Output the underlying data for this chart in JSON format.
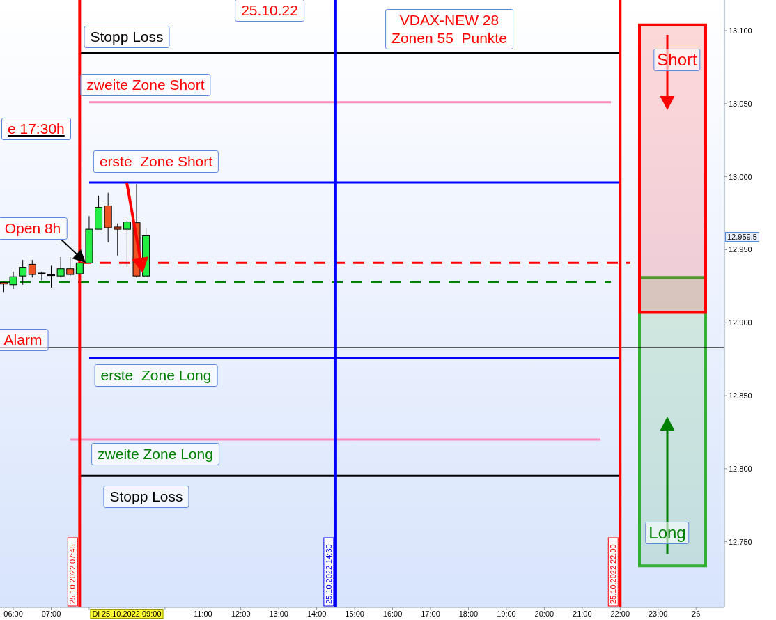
{
  "chart_data": {
    "type": "candlestick",
    "x": [
      "2022-10-25T05:45",
      "2022-10-25T06:00",
      "2022-10-25T06:15",
      "2022-10-25T06:30",
      "2022-10-25T06:45",
      "2022-10-25T07:00",
      "2022-10-25T07:15",
      "2022-10-25T07:30",
      "2022-10-25T07:45",
      "2022-10-25T08:00",
      "2022-10-25T08:15",
      "2022-10-25T08:30",
      "2022-10-25T08:45",
      "2022-10-25T09:00",
      "2022-10-25T09:15",
      "2022-10-25T09:30"
    ],
    "ohlc": [
      [
        12927.5,
        12928,
        12921,
        12926.5
      ],
      [
        12926,
        12935,
        12923,
        12931.5
      ],
      [
        12932,
        12943,
        12926,
        12938
      ],
      [
        12940,
        12943,
        12931,
        12933
      ],
      [
        12934,
        12935,
        12929,
        12934
      ],
      [
        12933,
        12939,
        12924,
        12933
      ],
      [
        12932,
        12945,
        12931,
        12937
      ],
      [
        12937,
        12945,
        12932,
        12933
      ],
      [
        12933.5,
        12941,
        12933,
        12941
      ],
      [
        12941,
        12973,
        12941,
        12964
      ],
      [
        12964,
        12987,
        12964,
        12979
      ],
      [
        12980,
        12989,
        12955,
        12965
      ],
      [
        12965.5,
        12968,
        12946,
        12964
      ],
      [
        12964,
        12970,
        12938,
        12969
      ],
      [
        12968.5,
        12995,
        12931,
        12932
      ],
      [
        12932,
        12964.5,
        12931,
        12959.5
      ]
    ],
    "colors": [
      "#ee5522",
      "#22ee44",
      "#22ee44",
      "#ee5522",
      "#000000",
      "#000000",
      "#22ee44",
      "#ee5522",
      "#22ee44",
      "#22ee44",
      "#22ee44",
      "#ee5522",
      "#ee5522",
      "#22ee44",
      "#ee5522",
      "#22ee44"
    ],
    "xlim": [
      "2022-10-25T05:39",
      "2022-10-26T00:45"
    ],
    "xticks": [
      {
        "value": "2022-10-25T06:00",
        "label": "06:00"
      },
      {
        "value": "2022-10-25T07:00",
        "label": "07:00"
      },
      {
        "value": "2022-10-25T08:00",
        "label": null
      },
      {
        "value": "2022-10-25T09:00",
        "label": null
      },
      {
        "value": "2022-10-25T10:00",
        "label": null
      },
      {
        "value": "2022-10-25T11:00",
        "label": "11:00"
      },
      {
        "value": "2022-10-25T12:00",
        "label": "12:00"
      },
      {
        "value": "2022-10-25T13:00",
        "label": "13:00"
      },
      {
        "value": "2022-10-25T14:00",
        "label": "14:00"
      },
      {
        "value": "2022-10-25T15:00",
        "label": "15:00"
      },
      {
        "value": "2022-10-25T16:00",
        "label": "16:00"
      },
      {
        "value": "2022-10-25T17:00",
        "label": "17:00"
      },
      {
        "value": "2022-10-25T18:00",
        "label": "18:00"
      },
      {
        "value": "2022-10-25T19:00",
        "label": "19:00"
      },
      {
        "value": "2022-10-25T20:00",
        "label": "20:00"
      },
      {
        "value": "2022-10-25T21:00",
        "label": "21:00"
      },
      {
        "value": "2022-10-25T22:00",
        "label": "22:00"
      },
      {
        "value": "2022-10-25T23:00",
        "label": "23:00"
      },
      {
        "value": "2022-10-26T00:00",
        "label": "26"
      }
    ],
    "ylim": [
      12705,
      13121
    ],
    "yticks": [
      {
        "value": 12750,
        "label": "12.750"
      },
      {
        "value": 12800,
        "label": "12.800"
      },
      {
        "value": 12850,
        "label": "12.850"
      },
      {
        "value": 12900,
        "label": "12.900"
      },
      {
        "value": 12950,
        "label": "12.950"
      },
      {
        "value": 13000,
        "label": "13.000"
      },
      {
        "value": 13050,
        "label": "13.050"
      },
      {
        "value": 13100,
        "label": "13.100"
      }
    ],
    "ref_lines": [
      {
        "axis": "y",
        "value": 13085,
        "color": "#000000",
        "label": "Stopp Loss"
      },
      {
        "axis": "y",
        "value": 13051,
        "color": "#ff88bb",
        "label": "zweite Zone Short"
      },
      {
        "axis": "y",
        "value": 12996,
        "color": "#0000ff",
        "label": "erste  Zone Short"
      },
      {
        "axis": "y",
        "value": 12941,
        "color": "#ff0000",
        "line_style": "dashed",
        "label": "Open 8h"
      },
      {
        "axis": "y",
        "value": 12928,
        "color": "#008000",
        "line_style": "dashed"
      },
      {
        "axis": "y",
        "value": 12883,
        "color": "#000000",
        "label": "Alarm"
      },
      {
        "axis": "y",
        "value": 12876,
        "color": "#0000ff",
        "label": "erste  Zone Long"
      },
      {
        "axis": "y",
        "value": 12820,
        "color": "#ff88bb",
        "label": "zweite Zone Long"
      },
      {
        "axis": "y",
        "value": 12795,
        "color": "#000000",
        "label": "Stopp Loss"
      },
      {
        "axis": "x",
        "value": "2022-10-25T07:45",
        "color": "#ff0000",
        "label": "25.10.2022 07:45"
      },
      {
        "axis": "x",
        "value": "2022-10-25T14:30",
        "color": "#0000ff",
        "label": "25.10.2022 14:30"
      },
      {
        "axis": "x",
        "value": "2022-10-25T22:00",
        "color": "#ff0000",
        "label": "25.10.2022 22:00"
      }
    ],
    "bands": [
      {
        "axis": "y",
        "from": 12733.5,
        "to": 12931,
        "color": "#33b033",
        "label": "Long"
      },
      {
        "axis": "y",
        "from": 12907,
        "to": 13104,
        "color": "#ff0000",
        "label": "Short"
      }
    ],
    "annotations": [
      "25.10.22",
      "VDAX-NEW 28\nZonen 55  Punkte",
      "e 17:30h",
      "12.959,5",
      "Di 25.10.2022 09:00"
    ]
  }
}
